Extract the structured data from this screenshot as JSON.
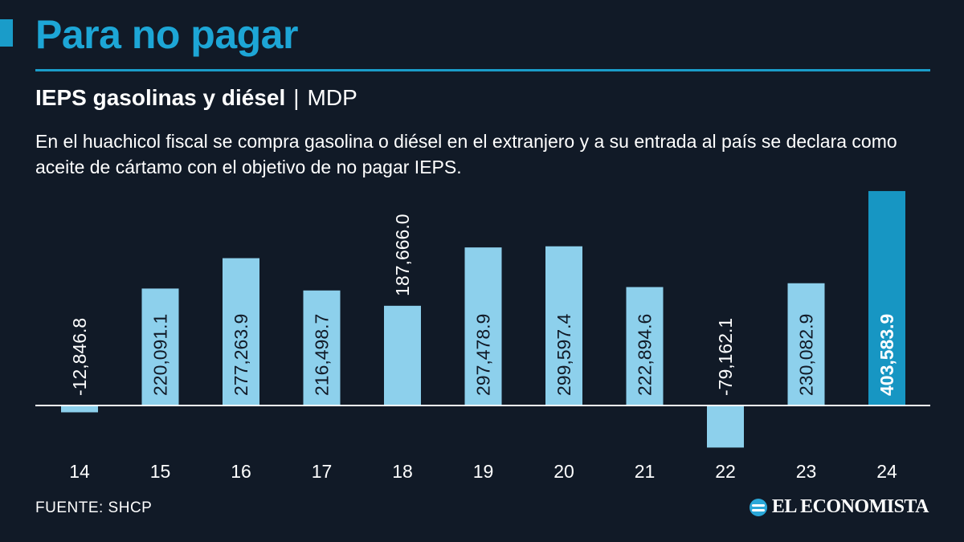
{
  "header": {
    "title": "Para no pagar",
    "subtitle_main": "IEPS gasolinas y diésel",
    "subtitle_sep": "|",
    "subtitle_unit": "MDP",
    "description": "En el huachicol fiscal se compra gasolina o diésel en el extranjero y a su entrada al país se declara como aceite de cártamo con el objetivo de no pagar IEPS."
  },
  "footer": {
    "source": "FUENTE: SHCP",
    "logo_text": "EL ECONOMISTA"
  },
  "colors": {
    "background": "#111a27",
    "accent": "#1da6d6",
    "bar": "#8dd0ec",
    "bar_highlight": "#1796c3",
    "axis": "#ffffff"
  },
  "chart_data": {
    "type": "bar",
    "categories": [
      "14",
      "15",
      "16",
      "17",
      "18",
      "19",
      "20",
      "21",
      "22",
      "23",
      "24"
    ],
    "values": [
      -12846.8,
      220091.1,
      277263.9,
      216498.7,
      187666.0,
      297478.9,
      299597.4,
      222894.6,
      -79162.1,
      230082.9,
      403583.9
    ],
    "labels": [
      "-12,846.8",
      "220,091.1",
      "277,263.9",
      "216,498.7",
      "187,666.0",
      "297,478.9",
      "299,597.4",
      "222,894.6",
      "-79,162.1",
      "230,082.9",
      "403,583.9"
    ],
    "highlight_index": 10,
    "title": "IEPS gasolinas y diésel",
    "xlabel": "",
    "ylabel": "",
    "ylim": [
      -80000,
      405000
    ],
    "grid": false
  }
}
